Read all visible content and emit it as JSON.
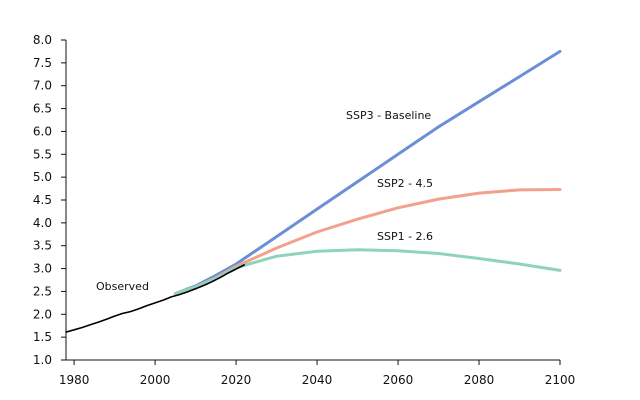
{
  "chart_data": {
    "type": "line",
    "title": "",
    "xlabel": "",
    "ylabel": "",
    "xlim": [
      1978,
      2100
    ],
    "ylim": [
      1.0,
      8.0
    ],
    "grid": false,
    "x_ticks": [
      "1980",
      "2000",
      "2020",
      "2040",
      "2060",
      "2080",
      "2100"
    ],
    "y_ticks": [
      "1.0",
      "1.5",
      "2.0",
      "2.5",
      "3.0",
      "3.5",
      "4.0",
      "4.5",
      "5.0",
      "5.5",
      "6.0",
      "6.5",
      "7.0",
      "7.5",
      "8.0"
    ],
    "series": [
      {
        "name": "SSP3 - Baseline",
        "color": "#6b8fd6",
        "x": [
          2005,
          2010,
          2015,
          2020,
          2030,
          2040,
          2050,
          2060,
          2070,
          2080,
          2090,
          2100
        ],
        "y": [
          2.45,
          2.62,
          2.85,
          3.1,
          3.7,
          4.3,
          4.9,
          5.5,
          6.1,
          6.65,
          7.2,
          7.75
        ]
      },
      {
        "name": "SSP2 - 4.5",
        "color": "#f4a08e",
        "x": [
          2005,
          2010,
          2015,
          2020,
          2030,
          2040,
          2050,
          2060,
          2070,
          2080,
          2090,
          2100
        ],
        "y": [
          2.45,
          2.6,
          2.8,
          3.05,
          3.45,
          3.8,
          4.08,
          4.33,
          4.52,
          4.65,
          4.72,
          4.73
        ]
      },
      {
        "name": "SSP1 - 2.6",
        "color": "#8fd3bd",
        "x": [
          2005,
          2010,
          2015,
          2020,
          2030,
          2040,
          2050,
          2060,
          2070,
          2080,
          2090,
          2100
        ],
        "y": [
          2.45,
          2.6,
          2.78,
          3.02,
          3.27,
          3.38,
          3.41,
          3.39,
          3.33,
          3.22,
          3.1,
          2.96
        ]
      },
      {
        "name": "Observed",
        "color": "#000000",
        "x": [
          1978,
          1980,
          1982,
          1984,
          1986,
          1988,
          1990,
          1992,
          1994,
          1996,
          1998,
          2000,
          2002,
          2004,
          2006,
          2008,
          2010,
          2012,
          2014,
          2016,
          2018,
          2020,
          2022
        ],
        "y": [
          1.61,
          1.66,
          1.71,
          1.77,
          1.83,
          1.89,
          1.96,
          2.02,
          2.06,
          2.12,
          2.19,
          2.25,
          2.31,
          2.38,
          2.43,
          2.49,
          2.56,
          2.63,
          2.71,
          2.8,
          2.9,
          2.99,
          3.08
        ]
      }
    ],
    "annotations": [
      {
        "text": "SSP3 - Baseline",
        "series": "SSP3 - Baseline"
      },
      {
        "text": "SSP2 - 4.5",
        "series": "SSP2 - 4.5"
      },
      {
        "text": "SSP1 - 2.6",
        "series": "SSP1 - 2.6"
      },
      {
        "text": "Observed",
        "series": "Observed"
      }
    ]
  }
}
